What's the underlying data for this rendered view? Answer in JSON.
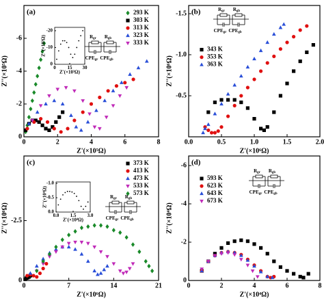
{
  "chart_data": [
    {
      "type": "scatter",
      "label": "(a)",
      "xlabel": "Z'(×10⁵Ω)",
      "ylabel": "Z''(×10⁵Ω)",
      "xlim": [
        0,
        8
      ],
      "ylim": [
        0,
        -8
      ],
      "xticks": [
        0,
        2,
        4,
        6,
        8
      ],
      "yticks": [
        0,
        -2,
        -4,
        -6
      ],
      "legend": "upper right",
      "circuit_labels": [
        [
          "R",
          "gr"
        ],
        [
          "R",
          "gb"
        ],
        [
          "CPE",
          "gr"
        ],
        [
          "CPE",
          "gb"
        ]
      ],
      "series": [
        {
          "name": "293 K",
          "color": "#1a8a2a",
          "marker": "diamond",
          "x": [
            0.1,
            0.2,
            0.3,
            0.4,
            0.5,
            0.6,
            0.7,
            0.8,
            0.9,
            1.0,
            1.1,
            1.2
          ],
          "values": [
            -0.3,
            -0.7,
            -1.2,
            -1.7,
            -2.2,
            -2.7,
            -3.2,
            -3.7,
            -4.2,
            -4.7,
            -5.2,
            -5.7
          ]
        },
        {
          "name": "303 K",
          "color": "#000000",
          "marker": "square",
          "x": [
            0.1,
            0.3,
            0.5,
            0.7,
            0.9,
            1.1,
            1.3,
            1.5,
            1.7,
            1.9,
            2.1,
            2.3
          ],
          "values": [
            -0.4,
            -0.8,
            -1.0,
            -1.0,
            -0.9,
            -0.7,
            -0.5,
            -0.4,
            -0.6,
            -0.9,
            -1.2,
            -1.5
          ]
        },
        {
          "name": "313 K",
          "color": "#e01010",
          "marker": "circle",
          "x": [
            0.2,
            0.6,
            1.0,
            1.4,
            1.8,
            2.2,
            2.6,
            3.0,
            3.5,
            4.0,
            4.5,
            5.0,
            5.5,
            6.0,
            6.5
          ],
          "values": [
            -0.5,
            -0.9,
            -1.1,
            -0.9,
            -0.5,
            -0.3,
            -0.5,
            -1.0,
            -1.5,
            -2.0,
            -2.4,
            -2.8,
            -3.1,
            -3.3,
            -3.5
          ]
        },
        {
          "name": "323 K",
          "color": "#2a4fd8",
          "marker": "triangle-up",
          "x": [
            0.3,
            0.8,
            1.3,
            1.8,
            2.3,
            2.8,
            3.1,
            3.4,
            3.8,
            4.3,
            4.8,
            5.3,
            5.8,
            6.3,
            6.8,
            7.3
          ],
          "values": [
            -0.8,
            -1.5,
            -2.0,
            -2.2,
            -2.0,
            -1.3,
            -0.6,
            -0.4,
            -0.9,
            -1.6,
            -2.2,
            -2.8,
            -3.3,
            -3.8,
            -4.2,
            -4.6
          ]
        },
        {
          "name": "333 K",
          "color": "#c02ab8",
          "marker": "triangle-down",
          "x": [
            0.5,
            1.0,
            1.5,
            2.0,
            2.5,
            3.0,
            3.5,
            3.9,
            4.2,
            4.5,
            4.9,
            5.3,
            5.7,
            6.1
          ],
          "values": [
            -1.0,
            -1.9,
            -2.5,
            -2.9,
            -3.0,
            -2.8,
            -2.2,
            -1.4,
            -0.6,
            -0.5,
            -1.2,
            -1.9,
            -2.5,
            -3.0
          ]
        }
      ]
    },
    {
      "type": "scatter",
      "label": "(b)",
      "xlabel": "Z'(×10⁶Ω)",
      "ylabel": "Z''(×10⁶Ω)",
      "xlim": [
        0,
        2
      ],
      "ylim": [
        0,
        -1.6
      ],
      "xticks": [
        {
          "value": 0,
          "label": "0.0"
        },
        0.5,
        {
          "value": 1,
          "label": "1.0"
        },
        1.5,
        {
          "value": 2,
          "label": "2.0"
        }
      ],
      "yticks": [
        -0.5,
        {
          "value": -1,
          "label": "-1.0"
        },
        -1.5
      ],
      "legend": "center left",
      "circuit_labels": [
        [
          "R",
          "gr"
        ],
        [
          "R",
          "gb"
        ],
        [
          "CPE",
          "gr"
        ],
        [
          "CPE",
          "gb"
        ]
      ],
      "series": [
        {
          "name": "343 K",
          "color": "#000000",
          "marker": "square",
          "x": [
            0.3,
            0.4,
            0.5,
            0.6,
            0.7,
            0.8,
            0.9,
            1.0,
            1.1,
            1.15,
            1.2,
            1.3,
            1.4,
            1.5,
            1.6,
            1.7,
            1.8,
            1.9
          ],
          "values": [
            -0.3,
            -0.42,
            -0.45,
            -0.45,
            -0.45,
            -0.42,
            -0.35,
            -0.22,
            -0.1,
            -0.08,
            -0.12,
            -0.3,
            -0.5,
            -0.65,
            -0.8,
            -0.92,
            -1.03,
            -1.12
          ]
        },
        {
          "name": "353 K",
          "color": "#e01010",
          "marker": "circle",
          "x": [
            0.25,
            0.3,
            0.35,
            0.4,
            0.45,
            0.5,
            0.6,
            0.7,
            0.8,
            0.9,
            1.0,
            1.1,
            1.2,
            1.3,
            1.4,
            1.5,
            1.6,
            1.7,
            1.8
          ],
          "values": [
            -0.12,
            -0.08,
            -0.05,
            -0.05,
            -0.07,
            -0.12,
            -0.25,
            -0.38,
            -0.5,
            -0.6,
            -0.7,
            -0.8,
            -0.9,
            -0.98,
            -1.07,
            -1.15,
            -1.22,
            -1.3,
            -1.35
          ]
        },
        {
          "name": "363 K",
          "color": "#2a4fd8",
          "marker": "triangle-up",
          "x": [
            0.22,
            0.25,
            0.3,
            0.4,
            0.5,
            0.6,
            0.7,
            0.8,
            0.9,
            1.0,
            1.1,
            1.2,
            1.3,
            1.4,
            1.45
          ],
          "values": [
            -0.05,
            -0.1,
            -0.15,
            -0.28,
            -0.4,
            -0.52,
            -0.63,
            -0.74,
            -0.85,
            -0.95,
            -1.05,
            -1.15,
            -1.25,
            -1.33,
            -1.37
          ]
        }
      ]
    },
    {
      "type": "scatter",
      "label": "(c)",
      "xlabel": "Z'(×10⁶Ω)",
      "ylabel": "Z''(×10⁶Ω)",
      "xlim": [
        0,
        21
      ],
      "ylim": [
        0,
        -5.2
      ],
      "xticks": [
        0,
        7,
        14,
        21
      ],
      "yticks": [
        0,
        -2.5
      ],
      "legend": "upper right",
      "circuit_labels": [
        [
          "R",
          "gr"
        ],
        [
          "R",
          "gb"
        ],
        [
          "CPE",
          "gr"
        ],
        [
          "CPE",
          "gb"
        ]
      ],
      "series": [
        {
          "name": "373 K",
          "color": "#000000",
          "marker": "square",
          "x": [
            0.2,
            0.4,
            0.6,
            0.8,
            1.0
          ],
          "values": [
            -0.05,
            -0.1,
            -0.12,
            -0.15,
            -0.2
          ]
        },
        {
          "name": "413 K",
          "color": "#e01010",
          "marker": "circle",
          "x": [
            0.5,
            1,
            1.5,
            2,
            2.5,
            3,
            3.5
          ],
          "values": [
            -0.2,
            -0.25,
            -0.2,
            -0.15,
            -0.3,
            -0.5,
            -0.7
          ]
        },
        {
          "name": "473 K",
          "color": "#2a4fd8",
          "marker": "triangle-up",
          "x": [
            1,
            2,
            3,
            4,
            5,
            6,
            7,
            8,
            9,
            10,
            11,
            11.5,
            12,
            12.5,
            13
          ],
          "values": [
            -0.3,
            -0.6,
            -0.9,
            -1.15,
            -1.3,
            -1.4,
            -1.4,
            -1.3,
            -1.1,
            -0.8,
            -0.4,
            -0.25,
            -0.3,
            -0.45,
            -0.6
          ]
        },
        {
          "name": "533 K",
          "color": "#c02ab8",
          "marker": "triangle-down",
          "x": [
            2,
            3,
            4,
            5,
            6,
            7,
            8,
            9,
            10,
            11,
            12,
            13,
            14,
            15,
            15.5,
            16,
            16.5,
            17
          ],
          "values": [
            -0.4,
            -0.7,
            -1.0,
            -1.2,
            -1.4,
            -1.55,
            -1.6,
            -1.6,
            -1.55,
            -1.4,
            -1.2,
            -1.0,
            -0.7,
            -0.4,
            -0.3,
            -0.35,
            -0.5,
            -0.7
          ]
        },
        {
          "name": "573 K",
          "color": "#1a8a2a",
          "marker": "diamond",
          "x": [
            2,
            3,
            4,
            5,
            6,
            7,
            8,
            9,
            10,
            11,
            12,
            13,
            14,
            15,
            16,
            17,
            18,
            19,
            19.5,
            20
          ],
          "values": [
            -0.4,
            -0.8,
            -1.1,
            -1.4,
            -1.7,
            -1.9,
            -2.05,
            -2.2,
            -2.25,
            -2.3,
            -2.3,
            -2.25,
            -2.1,
            -2.0,
            -1.8,
            -1.5,
            -1.2,
            -0.8,
            -0.6,
            -0.4
          ]
        }
      ]
    },
    {
      "type": "scatter",
      "label": "(d)",
      "xlabel": "Z'(×10⁴Ω)",
      "ylabel": "Z''(×10⁴Ω)",
      "xlim": [
        0,
        8
      ],
      "ylim": [
        0,
        -6.5
      ],
      "xticks": [
        0,
        2,
        4,
        6,
        8
      ],
      "yticks": [
        0,
        -2,
        -4,
        -6
      ],
      "legend": "upper left",
      "circuit_labels": [
        [
          "R",
          "gr"
        ],
        [
          "R",
          "gb"
        ],
        [
          "CPE",
          "gr"
        ],
        [
          "CPE",
          "gb"
        ]
      ],
      "series": [
        {
          "name": "593 K",
          "color": "#000000",
          "marker": "square",
          "x": [
            0.8,
            1.2,
            1.6,
            2.0,
            2.4,
            2.8,
            3.2,
            3.6,
            4.0,
            4.4,
            4.8,
            5.2,
            5.6,
            6.0,
            6.4,
            6.8,
            7.0,
            7.3
          ],
          "values": [
            -0.5,
            -1.0,
            -1.4,
            -1.7,
            -1.95,
            -2.05,
            -2.1,
            -2.05,
            -1.9,
            -1.7,
            -1.4,
            -1.0,
            -0.7,
            -0.5,
            -0.35,
            -0.2,
            -0.15,
            -0.35
          ]
        },
        {
          "name": "623 K",
          "color": "#e01010",
          "marker": "circle",
          "x": [
            0.8,
            1.2,
            1.6,
            2.0,
            2.4,
            2.8,
            3.2,
            3.6,
            4.0,
            4.4,
            4.8,
            5.0,
            5.2
          ],
          "values": [
            -0.5,
            -1.0,
            -1.3,
            -1.45,
            -1.5,
            -1.45,
            -1.35,
            -1.1,
            -0.8,
            -0.5,
            -0.2,
            -0.15,
            -0.2
          ]
        },
        {
          "name": "643 K",
          "color": "#2a4fd8",
          "marker": "triangle-up",
          "x": [
            0.8,
            1.2,
            1.6,
            2.0,
            2.4,
            2.8,
            3.2,
            3.6,
            4.0,
            4.4,
            4.8,
            5.1
          ],
          "values": [
            -0.5,
            -1.0,
            -1.3,
            -1.45,
            -1.5,
            -1.45,
            -1.3,
            -1.05,
            -0.75,
            -0.45,
            -0.2,
            -0.15
          ]
        },
        {
          "name": "673 K",
          "color": "#c02ab8",
          "marker": "triangle-down",
          "x": [
            0.8,
            1.2,
            1.6,
            2.0,
            2.4,
            2.8,
            3.2,
            3.6,
            3.9,
            4.2
          ],
          "values": [
            -0.6,
            -1.0,
            -1.3,
            -1.4,
            -1.45,
            -1.35,
            -1.1,
            -0.8,
            -0.5,
            -0.2
          ]
        }
      ]
    },
    {
      "type": "scatter",
      "xlabel": "Z'(×10³Ω)",
      "ylabel": "Z''(×10³Ω)",
      "xlim": [
        0,
        30
      ],
      "ylim": [
        0,
        -22
      ],
      "xticks": [
        0,
        15,
        30
      ],
      "yticks": [
        0,
        -10,
        -20
      ],
      "series": [
        {
          "color": "#000000",
          "marker": "dot",
          "x": [
            2,
            4,
            6,
            8,
            10,
            12,
            14,
            16,
            18,
            20,
            22,
            24,
            26,
            28
          ],
          "values": [
            -3,
            -8,
            -12,
            -14,
            -14,
            -13,
            -10,
            -6,
            -4,
            -6,
            -10,
            -14,
            -17,
            -20
          ]
        }
      ]
    },
    {
      "type": "scatter",
      "xlabel": "Z'(×10⁴Ω)",
      "ylabel": "Z''(×10⁴Ω)",
      "xlim": [
        0,
        3
      ],
      "ylim": [
        0,
        -1.05
      ],
      "xticks": [
        {
          "value": 0,
          "label": "0.0"
        },
        1.5,
        {
          "value": 3,
          "label": "3.0"
        }
      ],
      "yticks": [
        {
          "value": 0,
          "label": "0.0"
        },
        -0.5,
        {
          "value": -1,
          "label": "-1.0"
        }
      ],
      "series": [
        {
          "color": "#000000",
          "marker": "dot",
          "x": [
            0.2,
            0.4,
            0.6,
            0.8,
            1.0,
            1.2,
            1.4,
            1.6,
            1.8,
            2.0,
            2.2,
            2.4,
            2.6,
            2.8
          ],
          "values": [
            -0.25,
            -0.45,
            -0.6,
            -0.68,
            -0.72,
            -0.72,
            -0.7,
            -0.65,
            -0.55,
            -0.4,
            -0.2,
            -0.1,
            -0.2,
            -0.35
          ]
        }
      ]
    }
  ]
}
